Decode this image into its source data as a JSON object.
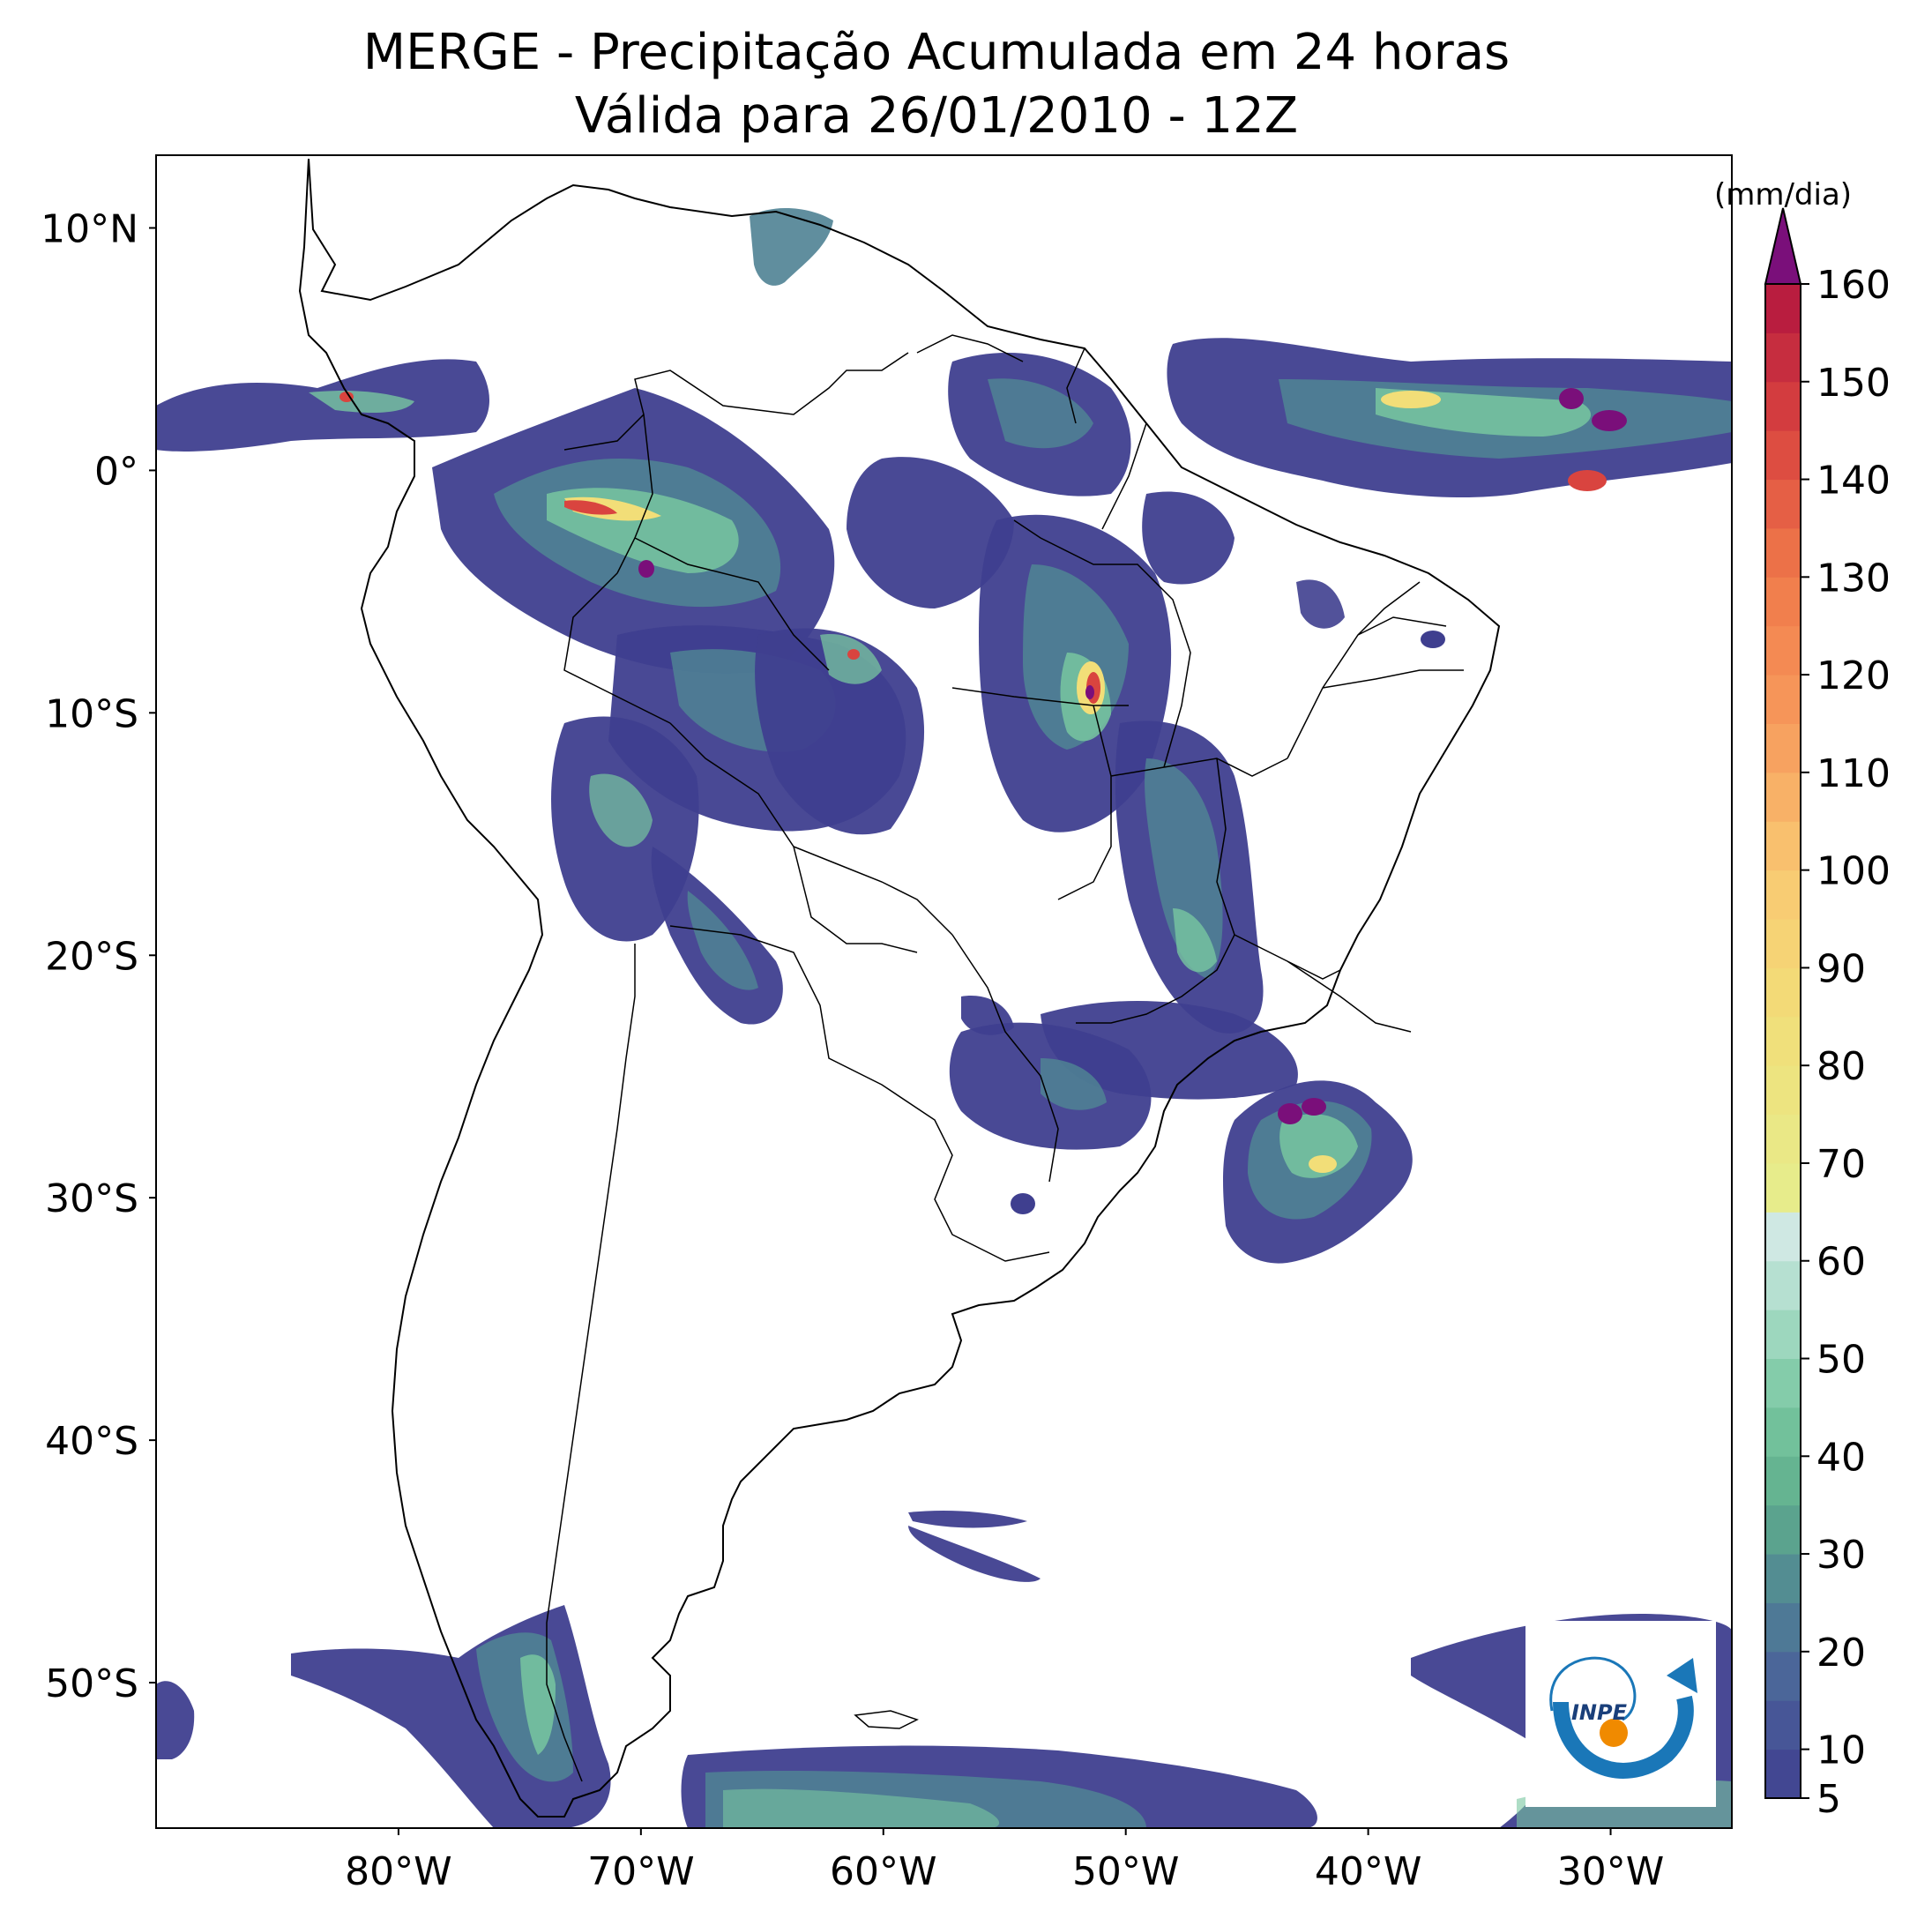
{
  "title": {
    "line1": "MERGE - Precipitação Acumulada em 24 horas",
    "line2": "Válida para 26/01/2010 - 12Z"
  },
  "map": {
    "lon_range": [
      -90,
      -25
    ],
    "lat_range": [
      -56,
      13
    ],
    "lat_ticks": [
      {
        "value": 10,
        "label": "10°N"
      },
      {
        "value": 0,
        "label": "0°"
      },
      {
        "value": -10,
        "label": "10°S"
      },
      {
        "value": -20,
        "label": "20°S"
      },
      {
        "value": -30,
        "label": "30°S"
      },
      {
        "value": -40,
        "label": "40°S"
      },
      {
        "value": -50,
        "label": "50°S"
      }
    ],
    "lon_ticks": [
      {
        "value": -80,
        "label": "80°W"
      },
      {
        "value": -70,
        "label": "70°W"
      },
      {
        "value": -60,
        "label": "60°W"
      },
      {
        "value": -50,
        "label": "50°W"
      },
      {
        "value": -40,
        "label": "40°W"
      },
      {
        "value": -30,
        "label": "30°W"
      }
    ]
  },
  "colorbar": {
    "unit_label": "(mm/dia)",
    "min": 5,
    "max": 160,
    "tick_labels": [
      "5",
      "10",
      "20",
      "30",
      "40",
      "50",
      "60",
      "70",
      "80",
      "90",
      "100",
      "110",
      "120",
      "130",
      "140",
      "150",
      "160"
    ],
    "tick_values": [
      5,
      10,
      20,
      30,
      40,
      50,
      60,
      70,
      80,
      90,
      100,
      110,
      120,
      130,
      140,
      150,
      160
    ],
    "extend_color": "#7a0f7a",
    "stops": [
      {
        "v": 5,
        "color": "#3f3f8f"
      },
      {
        "v": 15,
        "color": "#4a5d9a"
      },
      {
        "v": 25,
        "color": "#4f8294"
      },
      {
        "v": 35,
        "color": "#5fae8c"
      },
      {
        "v": 45,
        "color": "#78c7a0"
      },
      {
        "v": 55,
        "color": "#a9dcc8"
      },
      {
        "v": 65,
        "color": "#dcecec"
      },
      {
        "v": 65.01,
        "color": "#e6ee8e"
      },
      {
        "v": 85,
        "color": "#f2de78"
      },
      {
        "v": 100,
        "color": "#f9c872"
      },
      {
        "v": 115,
        "color": "#f79a5c"
      },
      {
        "v": 130,
        "color": "#f07a4a"
      },
      {
        "v": 145,
        "color": "#d9443f"
      },
      {
        "v": 160,
        "color": "#b3153f"
      }
    ]
  },
  "logo": {
    "text": "INPE"
  },
  "colors": {
    "rain_low": "#3f3f8f",
    "rain_mid": "#4f8294",
    "rain_green": "#78c7a0",
    "rain_yellow": "#f2de78",
    "rain_red": "#d9443f",
    "rain_max": "#7a0f7a",
    "coast": "#000000"
  }
}
